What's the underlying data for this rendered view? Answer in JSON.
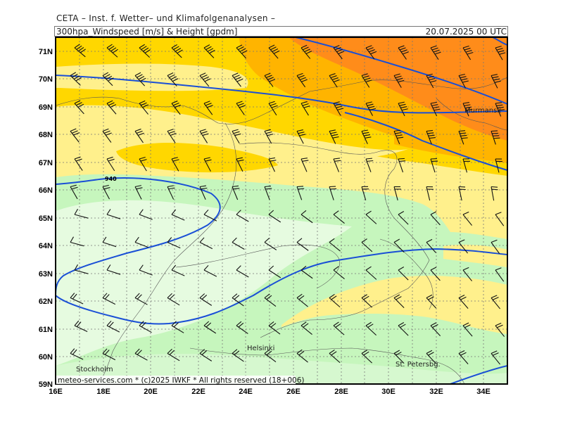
{
  "header": {
    "line1": "CETA – Inst. f. Wetter– und Klimafolgenanalysen –",
    "line2": "300hpa_Windspeed [m/s] & Height [gpdm]",
    "datetime": "20.07.2025 00 UTC"
  },
  "footer": "meteo-services.com * (c)2025 IWKF * All rights reserved (18+006)",
  "lat_labels": [
    "71N",
    "70N",
    "69N",
    "68N",
    "67N",
    "66N",
    "65N",
    "64N",
    "63N",
    "62N",
    "61N",
    "60N",
    "59N"
  ],
  "lon_labels": [
    "16E",
    "18E",
    "20E",
    "22E",
    "24E",
    "26E",
    "28E",
    "30E",
    "32E",
    "34E"
  ],
  "cities": [
    "Murmansk",
    "Helsinki",
    "Stockholm",
    "St. Petersbg."
  ],
  "contour_label": "940",
  "colors": {
    "very_light_green": "#e6fbe0",
    "light_green": "#c6f6bd",
    "pale_green": "#d6f8cf",
    "light_yellow": "#fff08c",
    "yellow": "#ffd700",
    "orange": "#ffb400",
    "dark_orange": "#ff8c1a",
    "contour": "#1a4fd6"
  }
}
